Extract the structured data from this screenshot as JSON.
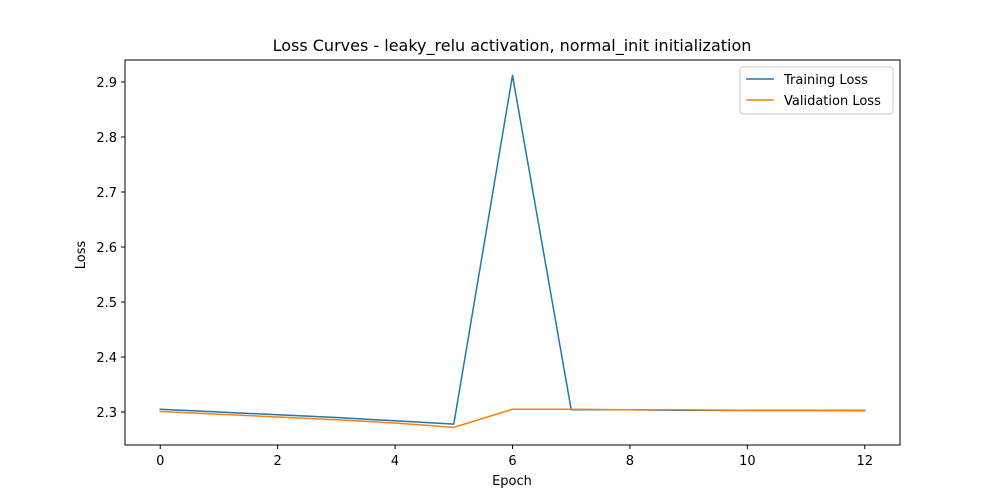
{
  "chart_data": {
    "type": "line",
    "title": "Loss Curves - leaky_relu activation, normal_init initialization",
    "xlabel": "Epoch",
    "ylabel": "Loss",
    "x": [
      0,
      1,
      2,
      3,
      4,
      5,
      6,
      7,
      8,
      9,
      10,
      11,
      12
    ],
    "xlim": [
      -0.6,
      12.6
    ],
    "ylim": [
      2.24,
      2.94
    ],
    "xticks": [
      0,
      2,
      4,
      6,
      8,
      10,
      12
    ],
    "yticks": [
      2.3,
      2.4,
      2.5,
      2.6,
      2.7,
      2.8,
      2.9
    ],
    "xtick_labels": [
      "0",
      "2",
      "4",
      "6",
      "8",
      "10",
      "12"
    ],
    "ytick_labels": [
      "2.3",
      "2.4",
      "2.5",
      "2.6",
      "2.7",
      "2.8",
      "2.9"
    ],
    "grid": false,
    "legend_position": "top-right",
    "series": [
      {
        "name": "Training Loss",
        "color": "#1f77b4",
        "values": [
          2.305,
          2.3,
          2.295,
          2.29,
          2.284,
          2.278,
          2.912,
          2.304,
          2.304,
          2.303,
          2.303,
          2.303,
          2.303
        ]
      },
      {
        "name": "Validation Loss",
        "color": "#ff7f0e",
        "values": [
          2.301,
          2.296,
          2.291,
          2.286,
          2.28,
          2.272,
          2.305,
          2.305,
          2.304,
          2.304,
          2.303,
          2.303,
          2.302
        ]
      }
    ]
  }
}
